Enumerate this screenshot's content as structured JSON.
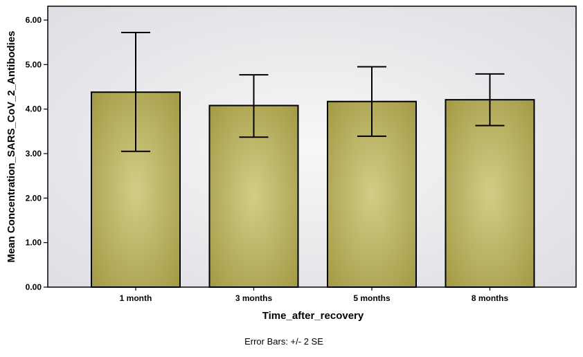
{
  "chart_data": {
    "type": "bar",
    "categories": [
      "1 month",
      "3 months",
      "5 months",
      "8 months"
    ],
    "values": [
      4.38,
      4.08,
      4.17,
      4.21
    ],
    "error_bars": {
      "lower": [
        3.05,
        3.37,
        3.39,
        3.63
      ],
      "upper": [
        5.72,
        4.77,
        4.95,
        4.79
      ]
    },
    "title": "",
    "xlabel": "Time_after_recovery",
    "ylabel": "Mean Concentration_SARS_CoV_2_Antibodies",
    "ylim": [
      0,
      6
    ],
    "yticks": [
      0,
      1,
      2,
      3,
      4,
      5,
      6
    ],
    "ytick_labels": [
      "0.00",
      "1.00",
      "2.00",
      "3.00",
      "4.00",
      "5.00",
      "6.00"
    ],
    "footnote": "Error Bars: +/- 2 SE",
    "grid": false,
    "colors": {
      "bar_fill_center": "#d2cd86",
      "bar_fill_edge": "#a39a45",
      "bar_stroke": "#000000",
      "plot_bg_center": "#f7f7f7",
      "plot_bg_edge": "#dcdce2"
    }
  }
}
